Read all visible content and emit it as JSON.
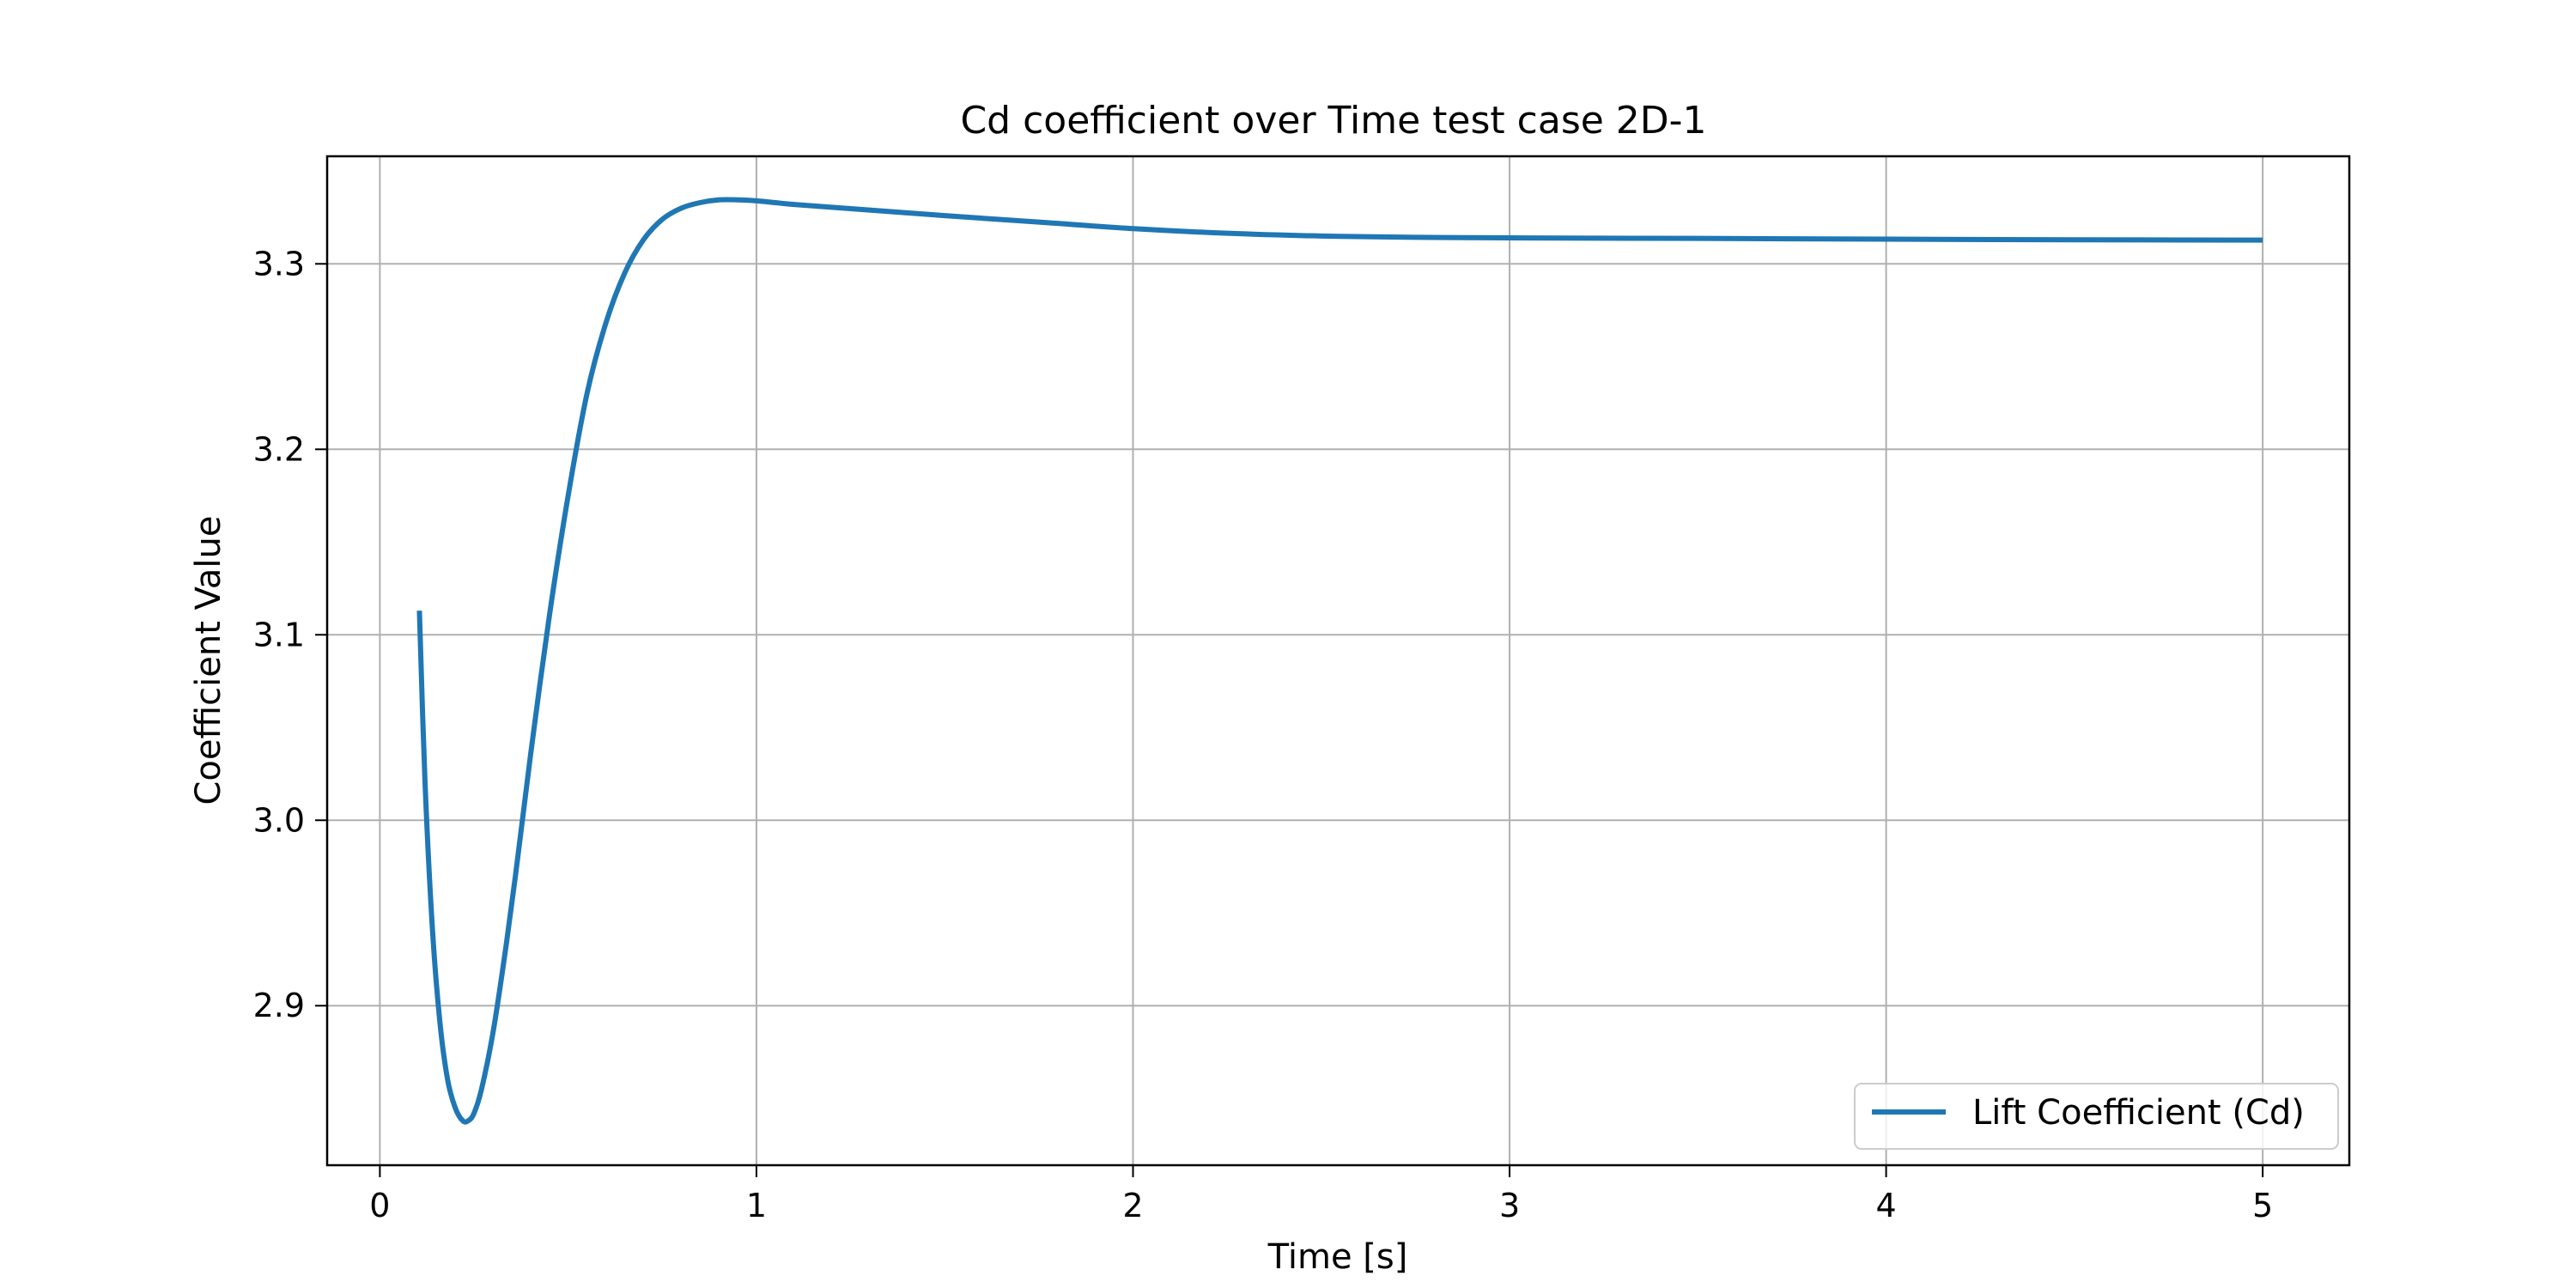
{
  "chart_data": {
    "type": "line",
    "title": "Cd coefficient over Time test case 2D-1",
    "xlabel": "Time [s]",
    "ylabel": "Coefficient Value",
    "xlim": [
      -0.14,
      5.23
    ],
    "ylim": [
      2.814,
      3.358
    ],
    "xticks": [
      0,
      1,
      2,
      3,
      4,
      5
    ],
    "yticks": [
      2.9,
      3.0,
      3.1,
      3.2,
      3.3
    ],
    "xtick_labels": [
      "0",
      "1",
      "2",
      "3",
      "4",
      "5"
    ],
    "ytick_labels": [
      "2.9",
      "3.0",
      "3.1",
      "3.2",
      "3.3"
    ],
    "grid": true,
    "legend_position": "lower-right",
    "series": [
      {
        "name": "Lift Coefficient (Cd)",
        "color": "#1f77b4",
        "x": [
          0.105,
          0.12,
          0.14,
          0.16,
          0.18,
          0.2,
          0.22,
          0.235,
          0.25,
          0.27,
          0.3,
          0.33,
          0.36,
          0.4,
          0.45,
          0.5,
          0.55,
          0.6,
          0.65,
          0.7,
          0.75,
          0.8,
          0.85,
          0.9,
          0.95,
          1.0,
          1.05,
          1.1,
          1.2,
          1.3,
          1.4,
          1.5,
          1.75,
          2.0,
          2.25,
          2.5,
          2.75,
          3.0,
          3.5,
          4.0,
          4.5,
          5.0
        ],
        "y": [
          3.113,
          3.02,
          2.94,
          2.89,
          2.86,
          2.845,
          2.838,
          2.838,
          2.842,
          2.855,
          2.885,
          2.925,
          2.97,
          3.035,
          3.11,
          3.175,
          3.23,
          3.268,
          3.295,
          3.313,
          3.324,
          3.33,
          3.333,
          3.3345,
          3.3345,
          3.334,
          3.333,
          3.332,
          3.3305,
          3.329,
          3.3275,
          3.326,
          3.3225,
          3.319,
          3.3165,
          3.315,
          3.3143,
          3.314,
          3.3137,
          3.3133,
          3.313,
          3.3128
        ]
      }
    ]
  }
}
